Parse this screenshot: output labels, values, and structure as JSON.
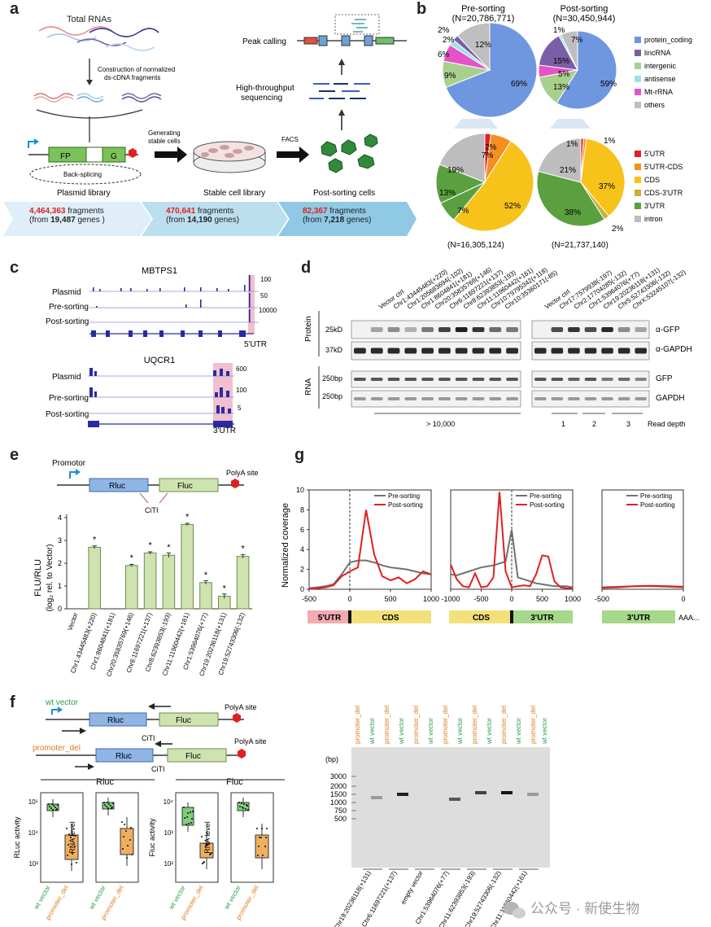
{
  "panels": {
    "a": "a",
    "b": "b",
    "c": "c",
    "d": "d",
    "e": "e",
    "f": "f",
    "g": "g"
  },
  "panel_a": {
    "total_rnas": "Total RNAs",
    "construct_1": "Construction of normalized",
    "construct_2": "ds-cDNA fragments",
    "fp": "FP",
    "g": "G",
    "back_splicing": "Back-splicing",
    "plasmid_library": "Plasmid library",
    "generating_1": "Generating",
    "generating_2": "stable cells",
    "stable_library": "Stable cell library",
    "facs": "FACS",
    "post_sorting_cells": "Post-sorting cells",
    "peak_calling": "Peak calling",
    "hts_1": "High-throughput",
    "hts_2": "sequencing",
    "stats": [
      {
        "count": "4,464,363",
        "unit": " fragments",
        "from": "(from ",
        "genes": "19,487",
        "tail": " genes )"
      },
      {
        "count": "470,641",
        "unit": " fragments",
        "from": "(from ",
        "genes": "14,190",
        "tail": " genes)"
      },
      {
        "count": "82,367",
        "unit": " fragments",
        "from": "(from ",
        "genes": "7,218",
        "tail": " genes)"
      }
    ]
  },
  "panel_b": {
    "pre_title": "Pre-sorting",
    "pre_n": "(N=20,786,771)",
    "post_title": "Post-sorting",
    "post_n": "(N=30,450,944)",
    "pre_n2": "(N=16,305,124)",
    "post_n2": "(N=21,737,140)",
    "legend1": [
      {
        "label": "protein_coding",
        "color": "#6f97e0"
      },
      {
        "label": "lincRNA",
        "color": "#7b5ea6"
      },
      {
        "label": "intergenic",
        "color": "#a8d08d"
      },
      {
        "label": "antisense",
        "color": "#9ee3e3"
      },
      {
        "label": "Mt-rRNA",
        "color": "#e652c8"
      },
      {
        "label": "others",
        "color": "#bfbfbf"
      }
    ],
    "legend2": [
      {
        "label": "5'UTR",
        "color": "#e02020"
      },
      {
        "label": "5'UTR-CDS",
        "color": "#f39020"
      },
      {
        "label": "CDS",
        "color": "#f7c21a"
      },
      {
        "label": "CDS-3'UTR",
        "color": "#c9b030"
      },
      {
        "label": "3'UTR",
        "color": "#5aa040"
      },
      {
        "label": "intron",
        "color": "#bdbdbd"
      }
    ],
    "pct": {
      "pre1": {
        "pc": "69%",
        "inter": "9%",
        "mt": "6%",
        "a": "2%",
        "b": "2%",
        "oth": "12%"
      },
      "post1": {
        "pc": "59%",
        "linc": "15%",
        "inter": "13%",
        "mt": "5%",
        "a": "1%",
        "oth": "7%"
      },
      "pre2": {
        "utr5": "7%",
        "cds": "52%",
        "utr3b": "7%",
        "utr3": "13%",
        "intron": "19%",
        "a": "2%"
      },
      "post2": {
        "cds": "37%",
        "utr3": "38%",
        "intron": "21%",
        "a": "1%",
        "b": "1%",
        "c": "2%"
      }
    }
  },
  "panel_c": {
    "gene1": "MBTPS1",
    "gene2": "UQCR1",
    "tracks": [
      "Plasmid",
      "Pre-sorting",
      "Post-sorting"
    ],
    "scale1": [
      "100",
      "50",
      "10000"
    ],
    "scale2": [
      "600",
      "100",
      "5"
    ],
    "region1": "5'UTR",
    "region2": "3'UTR"
  },
  "panel_d": {
    "lanes_left": [
      "Vector ctrl",
      "Chr1:43445483(+220)",
      "Chr1:205683694(-102)",
      "Chr1:8604841(+181)",
      "Chr20:35835769(+146)",
      "Chr6:11697221(+137)",
      "Chr8:62393853(-193)",
      "Chr11:11960442(+161)",
      "Chr10:79795342(+118)",
      "Chr10:35360171(-85)"
    ],
    "lanes_right": [
      "Vector ctrl",
      "Chr17:7579938(-197)",
      "Chr2:17704285(-132)",
      "Chr1:53964076(+77)",
      "Chr19:20236118(+131)",
      "Chr5:52743306(-132)",
      "ChrX:53245107(-132)"
    ],
    "protein": "Protein",
    "rna": "RNA",
    "kd25": "25kD",
    "kd37": "37kD",
    "bp250a": "250bp",
    "bp250b": "250bp",
    "agfp": "α-GFP",
    "agapdh": "α-GAPDH",
    "gfp": "GFP",
    "gapdh": "GAPDH",
    "gt": "> 10,000",
    "d1": "1",
    "d2": "2",
    "d3": "3",
    "read_depth": "Read depth"
  },
  "panel_e": {
    "promotor": "Promotor",
    "rluc": "Rluc",
    "fluc": "Fluc",
    "polya": "PolyA site",
    "citi": "CiTI",
    "ylabel1": "FLU/RLU",
    "ylabel2": "(log₂ rel. to Vector)",
    "star": "*"
  },
  "chart_data": [
    {
      "type": "bar",
      "categories": [
        "Vector",
        "Chr1:43445483(+220)",
        "Chr1:8604841(+181)",
        "Chr20:35835769(+146)",
        "Chr6:11697221(+137)",
        "Chr8:62393853(-193)",
        "Chr11:11960442(+161)",
        "Chr1:53964076(+77)",
        "Chr19:20236118(+131)",
        "Chr19:52743306(-132)"
      ],
      "values": [
        0,
        2.7,
        0,
        1.9,
        2.45,
        2.35,
        3.7,
        1.15,
        0.55,
        2.3
      ],
      "errors": [
        0,
        0.06,
        0,
        0.05,
        0.05,
        0.1,
        0.05,
        0.08,
        0.1,
        0.08
      ],
      "significant": [
        false,
        true,
        false,
        true,
        true,
        true,
        true,
        true,
        true,
        true
      ],
      "ylabel": "FLU/RLU (log₂ rel. to Vector)",
      "ylim": [
        0,
        4
      ],
      "yticks": [
        0,
        1,
        2,
        3,
        4
      ]
    },
    {
      "type": "line",
      "title": "",
      "ylabel": "Normalized coverage",
      "ylim": [
        0,
        10
      ],
      "yticks": [
        0,
        2,
        4,
        6,
        8,
        10
      ],
      "x": [
        -500,
        -400,
        -300,
        -200,
        -100,
        0,
        100,
        200,
        300,
        400,
        500,
        600,
        700,
        800,
        900,
        1000
      ],
      "xticks": [
        -500,
        0,
        500,
        1000
      ],
      "series": [
        {
          "name": "Pre-sorting",
          "color": "#707070",
          "values": [
            0.1,
            0.2,
            0.3,
            0.5,
            1.5,
            2.7,
            2.9,
            2.9,
            2.7,
            2.4,
            2.2,
            2.1,
            2.0,
            1.8,
            1.6,
            1.5
          ]
        },
        {
          "name": "Post-sorting",
          "color": "#e02020",
          "values": [
            0.05,
            0.1,
            0.2,
            0.4,
            1.3,
            1.8,
            2.2,
            8.0,
            3.5,
            1.3,
            0.9,
            1.2,
            0.6,
            1.0,
            1.8,
            1.5
          ]
        }
      ],
      "regions": [
        "5'UTR",
        "CDS"
      ]
    },
    {
      "type": "line",
      "ylim": [
        0,
        10
      ],
      "x": [
        -1000,
        -900,
        -800,
        -700,
        -600,
        -500,
        -400,
        -300,
        -200,
        -100,
        0,
        100,
        200,
        300,
        400,
        500,
        600,
        700,
        800,
        900,
        1000
      ],
      "xticks": [
        -1000,
        -500,
        0,
        500,
        1000
      ],
      "series": [
        {
          "name": "Pre-sorting",
          "color": "#707070",
          "values": [
            1.5,
            1.4,
            1.6,
            1.8,
            2.0,
            2.2,
            2.3,
            2.4,
            2.6,
            2.8,
            6.0,
            1.2,
            1.0,
            0.8,
            0.6,
            0.5,
            0.4,
            0.3,
            0.3,
            0.3,
            0.2
          ]
        },
        {
          "name": "Post-sorting",
          "color": "#e02020",
          "values": [
            2.5,
            1.0,
            0.3,
            0.2,
            1.6,
            0.2,
            0.3,
            1.2,
            9.8,
            1.8,
            0.2,
            0.3,
            0.4,
            0.3,
            1.5,
            3.4,
            3.3,
            0.8,
            0.2,
            0.1,
            0.1
          ]
        }
      ],
      "regions": [
        "CDS",
        "3'UTR"
      ]
    },
    {
      "type": "line",
      "ylim": [
        0,
        10
      ],
      "x": [
        -500,
        -400,
        -300,
        -200,
        -100,
        0
      ],
      "xticks": [
        -500,
        0
      ],
      "series": [
        {
          "name": "Pre-sorting",
          "color": "#707070",
          "values": [
            0.2,
            0.25,
            0.3,
            0.3,
            0.25,
            0.2
          ]
        },
        {
          "name": "Post-sorting",
          "color": "#e02020",
          "values": [
            0.15,
            0.2,
            0.3,
            0.35,
            0.3,
            0.25
          ]
        }
      ],
      "regions": [
        "3'UTR"
      ],
      "tail": "AAA..."
    }
  ],
  "panel_f": {
    "wt_vector": "wt vector",
    "promoter_del": "promoter_del",
    "rluc": "Rluc",
    "fluc": "Fluc",
    "polya": "PolyA site",
    "citi": "CiTI",
    "rluc_title": "Rluc",
    "fluc_title": "Fluc",
    "rluc_activity": "RLuc activity",
    "rna_level": "RNA level",
    "fluc_activity": "Fluc activity",
    "bp": "(bp)",
    "ladder": [
      "3000",
      "2000",
      "1500",
      "1000",
      "750",
      "500"
    ],
    "bottom_labels": [
      "Chr19:20236118(+131)",
      "Chr6:11697221(+137)",
      "empty vector",
      "Chr1:53964076(+77)",
      "Chr11:62393853(-193)",
      "Chr19:52743306(-132)",
      "Chr11:11960442(+161)"
    ],
    "axis_ticks_r": [
      "10⁵",
      "10⁴",
      "10³"
    ],
    "axis_ticks_f": [
      "10⁴",
      "10³",
      "10²"
    ]
  },
  "watermark": "公众号 · 新使生物"
}
